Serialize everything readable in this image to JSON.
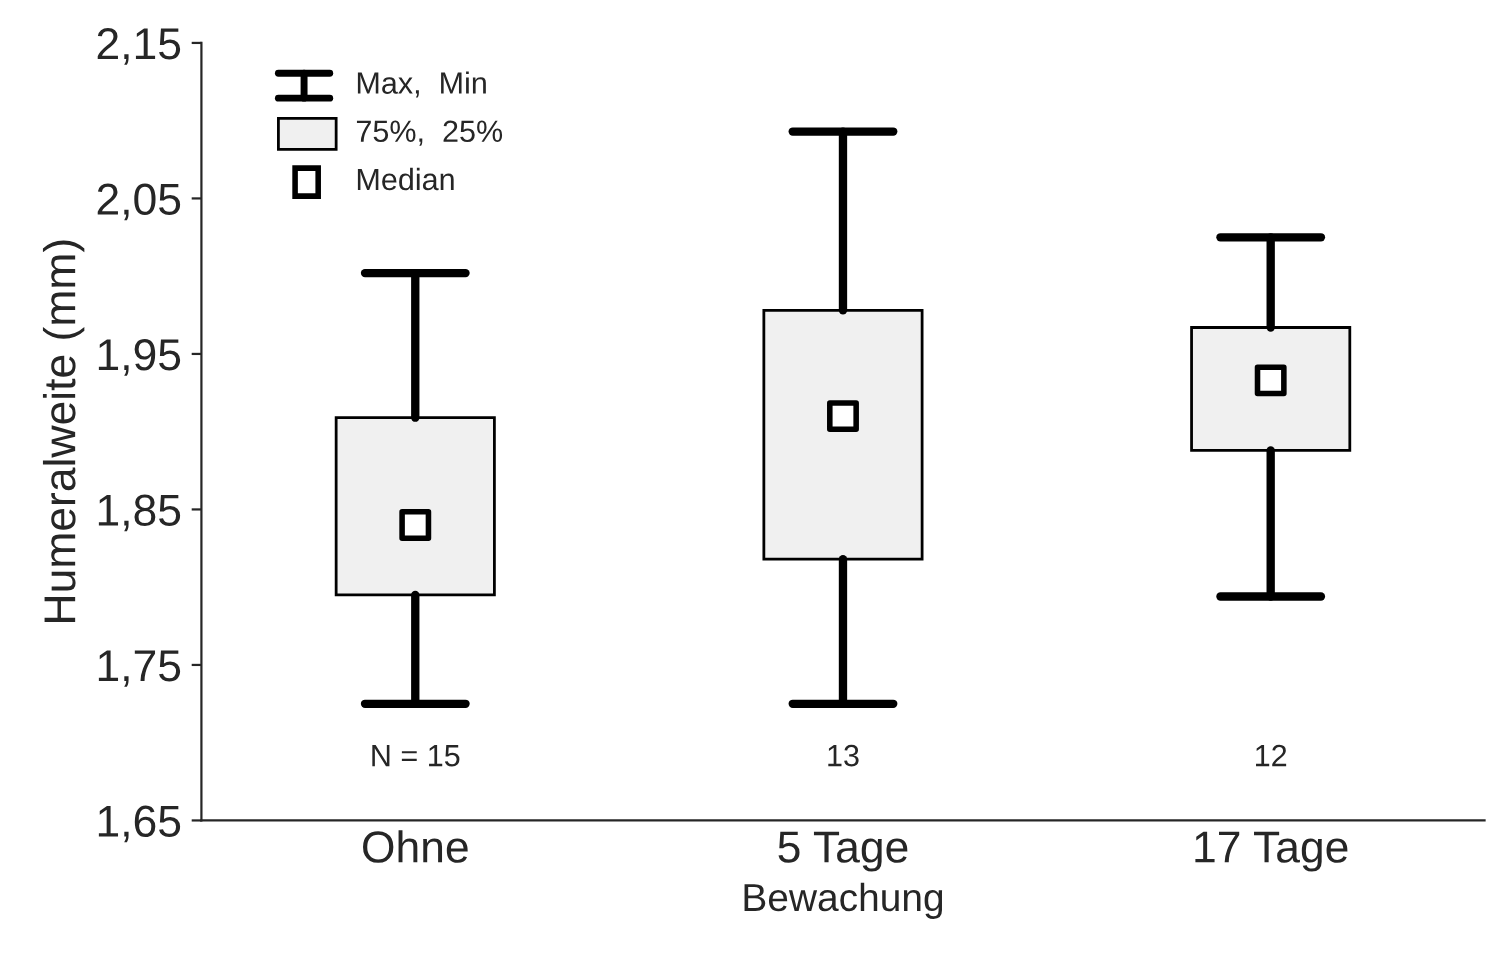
{
  "chart_data": {
    "type": "box",
    "xlabel": "Bewachung",
    "ylabel": "Humeralweite (mm)",
    "categories": [
      "Ohne",
      "5 Tage",
      "17 Tage"
    ],
    "boxes": [
      {
        "low": 1.725,
        "q1": 1.795,
        "median": 1.84,
        "q3": 1.909,
        "high": 2.002
      },
      {
        "low": 1.725,
        "q1": 1.818,
        "median": 1.91,
        "q3": 1.978,
        "high": 2.093
      },
      {
        "low": 1.794,
        "q1": 1.888,
        "median": 1.933,
        "q3": 1.967,
        "high": 2.025
      }
    ],
    "color": "#f0f0f0",
    "ylim": [
      1.65,
      2.15
    ],
    "yticks": [
      {
        "value": 1.65,
        "label": "1,65"
      },
      {
        "value": 1.75,
        "label": "1,75"
      },
      {
        "value": 1.85,
        "label": "1,85"
      },
      {
        "value": 1.95,
        "label": "1,95"
      },
      {
        "value": 2.05,
        "label": "2,05"
      },
      {
        "value": 2.15,
        "label": "2,15"
      }
    ],
    "annotations": [
      "N = 15",
      "13",
      "12",
      "Max,  Min",
      "75%,  25%",
      "Median"
    ],
    "grid": false
  }
}
